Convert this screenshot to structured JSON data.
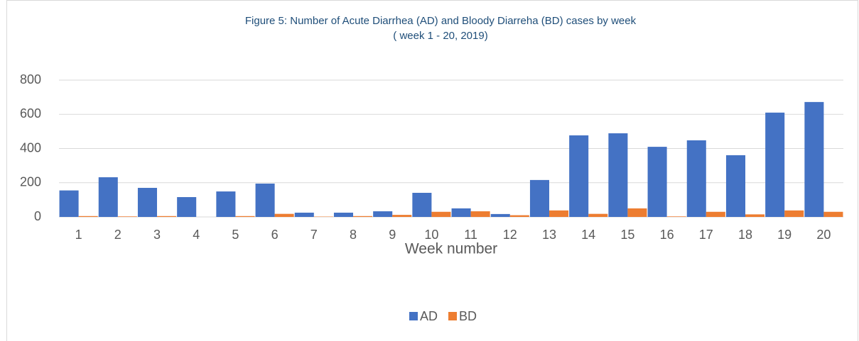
{
  "chart_data": {
    "type": "bar",
    "title": "Figure 5: Number of Acute Diarrhea (AD) and Bloody Diarreha (BD) cases by week",
    "subtitle": "( week 1 - 20, 2019)",
    "x_label": "Week number",
    "categories": [
      "1",
      "2",
      "3",
      "4",
      "5",
      "6",
      "7",
      "8",
      "9",
      "10",
      "11",
      "12",
      "13",
      "14",
      "15",
      "16",
      "17",
      "18",
      "19",
      "20"
    ],
    "series": [
      {
        "name": "AD",
        "color": "#4472c4",
        "values": [
          155,
          232,
          170,
          116,
          149,
          195,
          25,
          25,
          33,
          141,
          50,
          17,
          216,
          477,
          489,
          410,
          448,
          361,
          610,
          672
        ]
      },
      {
        "name": "BD",
        "color": "#ed7d31",
        "values": [
          5,
          3,
          5,
          0,
          5,
          18,
          2,
          5,
          12,
          30,
          33,
          10,
          38,
          18,
          50,
          3,
          30,
          15,
          38,
          30
        ]
      }
    ],
    "ylim": [
      0,
      800
    ],
    "yticks": [
      0,
      200,
      400,
      600,
      800
    ],
    "grid": true,
    "legend": "bottom"
  }
}
